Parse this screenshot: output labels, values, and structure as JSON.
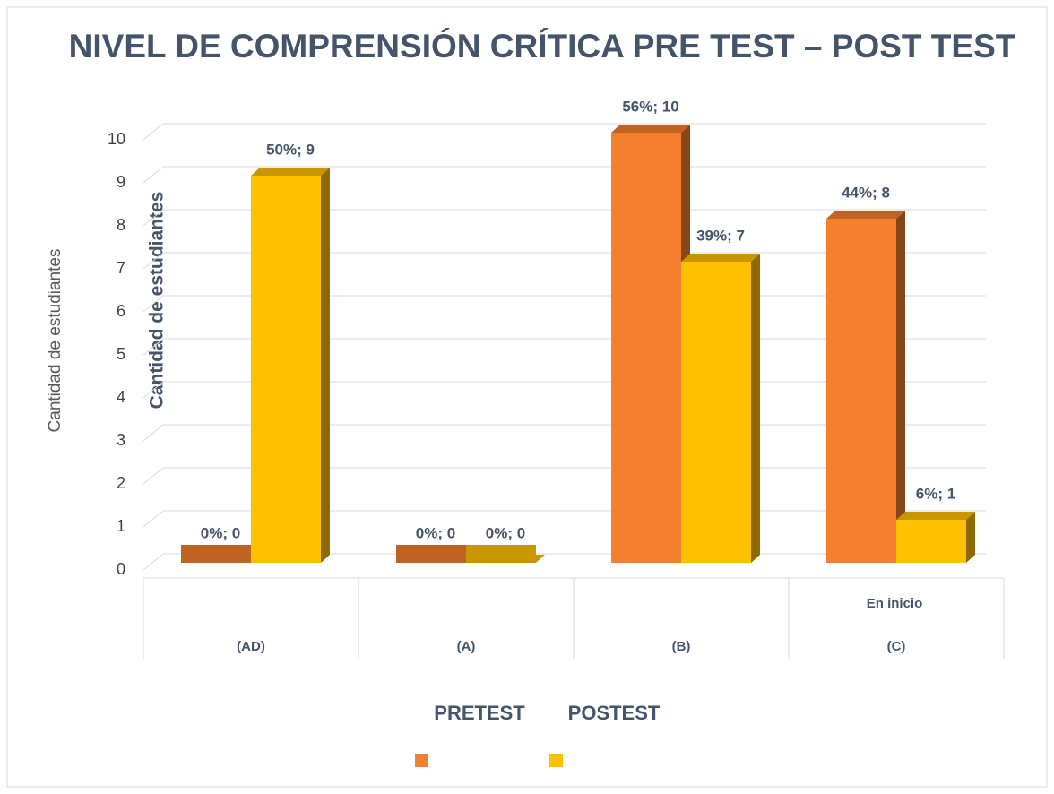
{
  "chart_data": {
    "type": "bar3d",
    "title": "NIVEL DE COMPRENSIÓN CRÍTICA PRE TEST – POST TEST",
    "ylabel": "Cantidad de estudiantes",
    "annotations": [
      "Cantidad de estudiantes",
      "En inicio"
    ],
    "categories": [
      "(AD)",
      "(A)",
      "(B)",
      "(C)"
    ],
    "series": [
      {
        "name": "PRETEST",
        "color": "#f47f2e",
        "values": [
          0,
          0,
          10,
          8
        ],
        "value_labels": [
          "0%; 0",
          "0%; 0",
          "56%; 10",
          "44%; 8"
        ]
      },
      {
        "name": "POSTEST",
        "color": "#ffc000",
        "values": [
          9,
          0,
          7,
          1
        ],
        "value_labels": [
          "50%; 9",
          "0%; 0",
          "39%; 7",
          "6%; 1"
        ]
      }
    ],
    "ylim": [
      0,
      10
    ],
    "yticks": [
      0,
      1,
      2,
      3,
      4,
      5,
      6,
      7,
      8,
      9,
      10
    ],
    "grid": true
  }
}
